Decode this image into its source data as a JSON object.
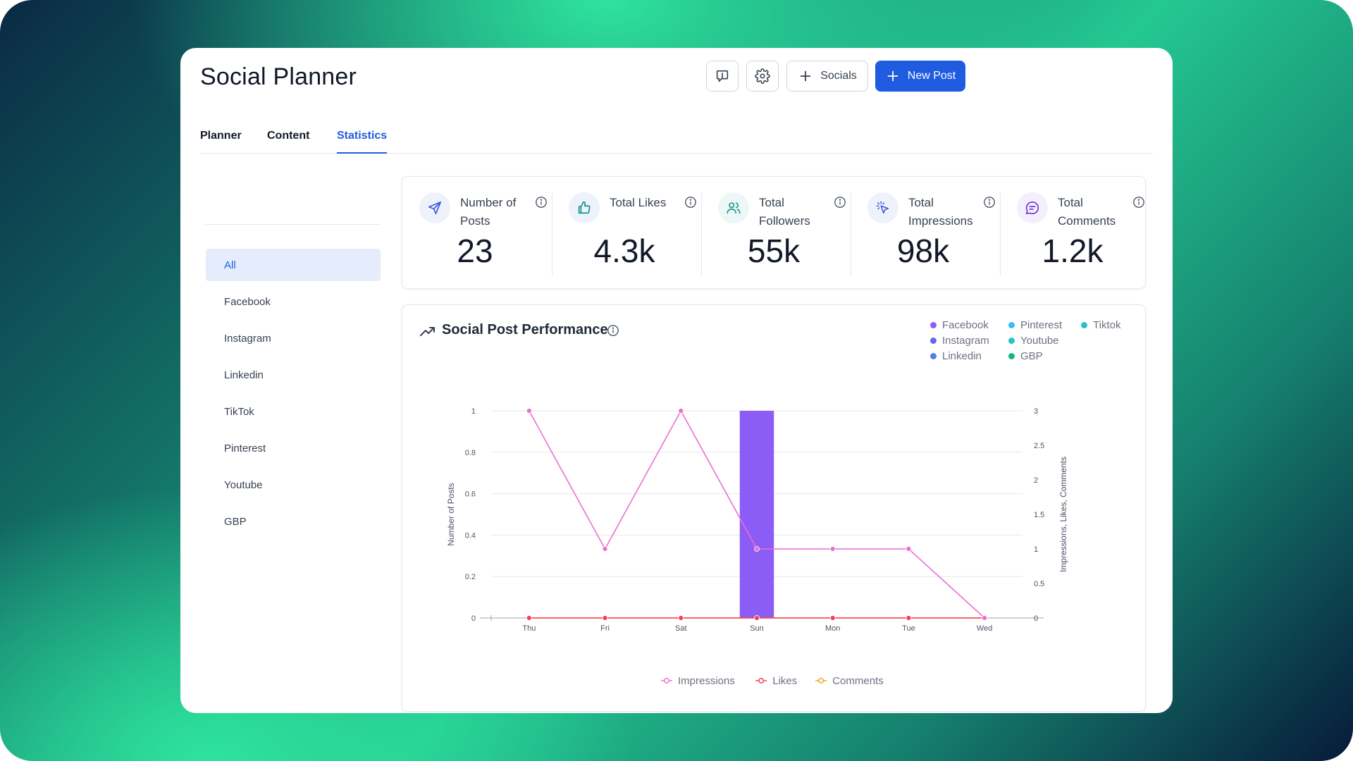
{
  "app": {
    "title": "Social Planner"
  },
  "header": {
    "feedback_icon": "feedback-icon",
    "settings_icon": "gear-icon",
    "socials_label": "Socials",
    "new_post_label": "New Post",
    "accent_color": "#1f5ce0"
  },
  "tabs": [
    {
      "label": "Planner",
      "active": false
    },
    {
      "label": "Content",
      "active": false
    },
    {
      "label": "Statistics",
      "active": true
    }
  ],
  "sidebar": {
    "items": [
      {
        "label": "All",
        "active": true
      },
      {
        "label": "Facebook",
        "active": false
      },
      {
        "label": "Instagram",
        "active": false
      },
      {
        "label": "Linkedin",
        "active": false
      },
      {
        "label": "TikTok",
        "active": false
      },
      {
        "label": "Pinterest",
        "active": false
      },
      {
        "label": "Youtube",
        "active": false
      },
      {
        "label": "GBP",
        "active": false
      }
    ]
  },
  "stats": [
    {
      "label": "Number of Posts",
      "value": "23",
      "icon": "send-icon"
    },
    {
      "label": "Total Likes",
      "value": "4.3k",
      "icon": "thumbs-up-icon"
    },
    {
      "label": "Total Followers",
      "value": "55k",
      "icon": "users-icon"
    },
    {
      "label": "Total Impressions",
      "value": "98k",
      "icon": "cursor-click-icon"
    },
    {
      "label": "Total Comments",
      "value": "1.2k",
      "icon": "comment-icon"
    }
  ],
  "performance": {
    "title": "Social Post Performance",
    "legend_platforms": [
      {
        "name": "Facebook",
        "color": "#8b5cf6"
      },
      {
        "name": "Instagram",
        "color": "#6366f1"
      },
      {
        "name": "Linkedin",
        "color": "#4f7fe8"
      },
      {
        "name": "Pinterest",
        "color": "#38bdf8"
      },
      {
        "name": "Youtube",
        "color": "#22c5c5"
      },
      {
        "name": "GBP",
        "color": "#14b87a"
      },
      {
        "name": "Tiktok",
        "color": "#2bbfc7"
      }
    ]
  },
  "chart_data": {
    "type": "bar",
    "categories": [
      "Thu",
      "Fri",
      "Sat",
      "Sun",
      "Mon",
      "Tue",
      "Wed"
    ],
    "ylabel": "Number of Posts",
    "ylabel_right": "Impressions, Likes, Comments",
    "ylim": [
      0,
      1
    ],
    "ylim_right": [
      0,
      3
    ],
    "yticks": [
      "0",
      "0.2",
      "0.4",
      "0.6",
      "0.8",
      "1"
    ],
    "yticks_right": [
      "0",
      "0.5",
      "1",
      "1.5",
      "2",
      "2.5",
      "3"
    ],
    "grid": true,
    "bar_series": [
      {
        "name": "Facebook",
        "color": "#8b5cf6",
        "values": [
          0,
          0,
          0,
          1,
          0,
          0,
          0
        ]
      }
    ],
    "series": [
      {
        "name": "Impressions",
        "color": "#ec6fcf",
        "axis": "right",
        "values": [
          3,
          1,
          3,
          1,
          1,
          1,
          0
        ]
      },
      {
        "name": "Likes",
        "color": "#f43f5e",
        "axis": "right",
        "values": [
          0,
          0,
          0,
          0,
          0,
          0,
          0
        ]
      },
      {
        "name": "Comments",
        "color": "#f5a623",
        "axis": "right",
        "values": [
          0,
          0,
          0,
          0,
          0,
          0,
          0
        ]
      }
    ]
  }
}
